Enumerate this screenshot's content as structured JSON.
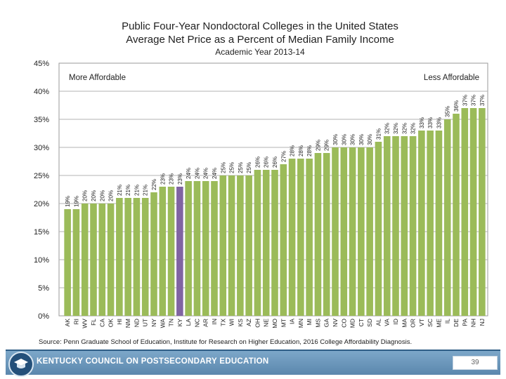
{
  "chart_data": {
    "type": "bar",
    "title": "Public Four-Year Nondoctoral Colleges in the United States",
    "subtitle": "Average Net Price as a Percent of Median Family Income",
    "subtitle2": "Academic Year 2013-14",
    "xlabel": "",
    "ylabel": "",
    "ylim": [
      0,
      45
    ],
    "yticks": [
      "0%",
      "5%",
      "10%",
      "15%",
      "20%",
      "25%",
      "30%",
      "35%",
      "40%",
      "45%"
    ],
    "grid": true,
    "annotations": {
      "left": "More Affordable",
      "right": "Less Affordable"
    },
    "highlight_category": "KY",
    "bar_color": "#9bbb59",
    "highlight_color": "#8064a2",
    "categories": [
      "AK",
      "RI",
      "WV",
      "FL",
      "CA",
      "OK",
      "HI",
      "NM",
      "ND",
      "UT",
      "NY",
      "WA",
      "TN",
      "KY",
      "LA",
      "NC",
      "AR",
      "IN",
      "TX",
      "WI",
      "KS",
      "AZ",
      "OH",
      "NE",
      "MO",
      "MT",
      "IA",
      "MN",
      "MI",
      "MS",
      "GA",
      "NV",
      "CO",
      "MD",
      "CT",
      "SD",
      "AL",
      "VA",
      "ID",
      "MA",
      "OR",
      "VT",
      "SC",
      "ME",
      "IL",
      "DE",
      "PA",
      "NH",
      "NJ"
    ],
    "values": [
      19,
      19,
      20,
      20,
      20,
      20,
      21,
      21,
      21,
      21,
      22,
      23,
      23,
      23,
      24,
      24,
      24,
      24,
      25,
      25,
      25,
      25,
      26,
      26,
      26,
      27,
      28,
      28,
      28,
      29,
      29,
      30,
      30,
      30,
      30,
      30,
      31,
      32,
      32,
      32,
      32,
      33,
      33,
      33,
      35,
      36,
      37,
      37,
      37
    ],
    "labels": [
      "19%",
      "19%",
      "20%",
      "20%",
      "20%",
      "20%",
      "21%",
      "21%",
      "21%",
      "21%",
      "22%",
      "23%",
      "23%",
      "23%",
      "24%",
      "24%",
      "24%",
      "24%",
      "25%",
      "25%",
      "25%",
      "25%",
      "26%",
      "26%",
      "26%",
      "27%",
      "28%",
      "28%",
      "28%",
      "29%",
      "29%",
      "30%",
      "30%",
      "30%",
      "30%",
      "30%",
      "31%",
      "32%",
      "32%",
      "32%",
      "32%",
      "33%",
      "33%",
      "33%",
      "35%",
      "36%",
      "37%",
      "37%",
      "37%"
    ]
  },
  "source": "Source:  Penn Graduate School of Education, Institute for Research on Higher Education, 2016 College Affordability Diagnosis.",
  "footer": {
    "org_name": "KENTUCKY COUNCIL ON POSTSECONDARY EDUCATION",
    "page_number": "39"
  }
}
